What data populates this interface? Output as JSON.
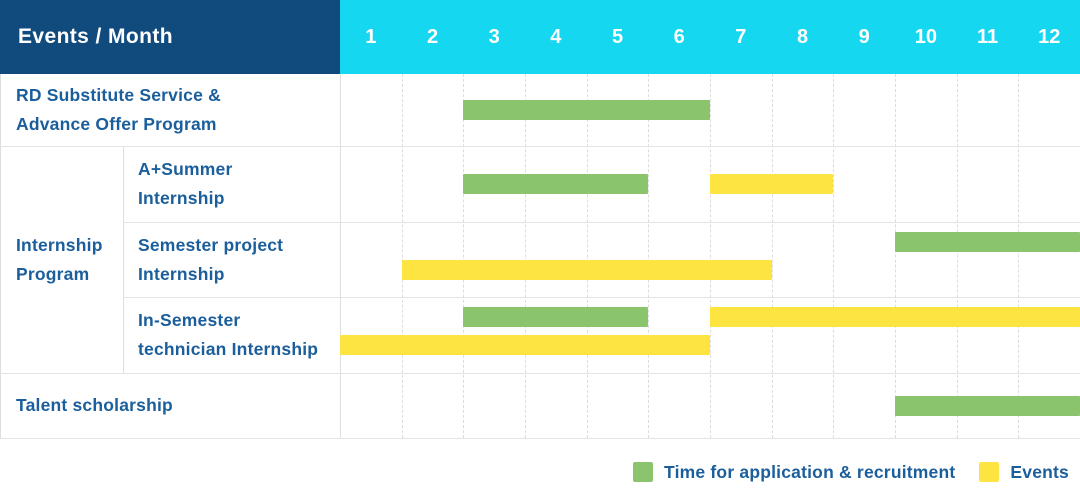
{
  "header": {
    "label": "Events / Month",
    "months": [
      "1",
      "2",
      "3",
      "4",
      "5",
      "6",
      "7",
      "8",
      "9",
      "10",
      "11",
      "12"
    ]
  },
  "colors": {
    "header_navy": "#114B7E",
    "header_cyan": "#16D7F0",
    "bar_green": "#8AC46D",
    "bar_yellow": "#FEE440",
    "label_blue": "#1B5E9C",
    "grid_gray": "#e0e0e0"
  },
  "chart_data": {
    "type": "gantt",
    "title": "Events / Month",
    "x": {
      "unit": "month",
      "range": [
        1,
        12
      ],
      "ticks": [
        1,
        2,
        3,
        4,
        5,
        6,
        7,
        8,
        9,
        10,
        11,
        12
      ]
    },
    "grid": "dashed-vertical-month-lines",
    "legend_position": "bottom-right",
    "legend": [
      {
        "label": "Time for application & recruitment",
        "color": "#8AC46D"
      },
      {
        "label": "Events",
        "color": "#FEE440"
      }
    ],
    "group": {
      "label": "Internship Program",
      "label_lines": [
        "Internship",
        "Program"
      ],
      "row_indexes": [
        1,
        2,
        3
      ]
    },
    "rows": [
      {
        "label": "RD Substitute Service & Advance Offer Program",
        "label_lines": [
          "RD Substitute Service &",
          "Advance Offer Program"
        ],
        "bars": [
          {
            "series": 0,
            "start_month": 3,
            "end_month": 6,
            "lane": "center"
          }
        ]
      },
      {
        "label": "A+Summer Internship",
        "label_lines": [
          "A+Summer",
          "Internship"
        ],
        "bars": [
          {
            "series": 0,
            "start_month": 3,
            "end_month": 5,
            "lane": "center"
          },
          {
            "series": 1,
            "start_month": 7,
            "end_month": 8,
            "lane": "center"
          }
        ]
      },
      {
        "label": "Semester project Internship",
        "label_lines": [
          "Semester project",
          "Internship"
        ],
        "bars": [
          {
            "series": 0,
            "start_month": 10,
            "end_month": 12,
            "lane": "upper"
          },
          {
            "series": 1,
            "start_month": 2,
            "end_month": 7,
            "lane": "lower"
          }
        ]
      },
      {
        "label": "In-Semester technician Internship",
        "label_lines": [
          "In-Semester",
          "technician Internship"
        ],
        "bars": [
          {
            "series": 0,
            "start_month": 3,
            "end_month": 5,
            "lane": "upper"
          },
          {
            "series": 1,
            "start_month": 7,
            "end_month": 12,
            "lane": "upper"
          },
          {
            "series": 1,
            "start_month": 1,
            "end_month": 6,
            "lane": "lower"
          }
        ]
      },
      {
        "label": "Talent scholarship",
        "label_lines": [
          "Talent scholarship"
        ],
        "bars": [
          {
            "series": 0,
            "start_month": 10,
            "end_month": 12,
            "lane": "center"
          }
        ]
      }
    ]
  },
  "legend": {
    "items": [
      {
        "label": "Time for application & recruitment"
      },
      {
        "label": "Events"
      }
    ]
  }
}
